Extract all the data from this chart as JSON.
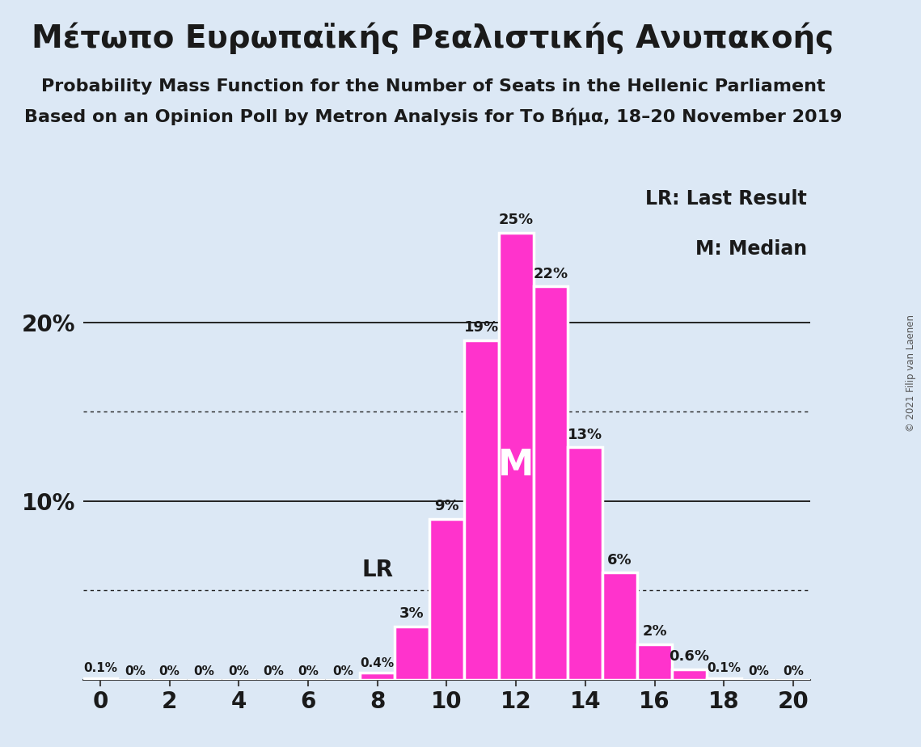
{
  "title_greek": "Μέτωπο Ευρωπαϊκής Ρεαλιστικής Ανυπακοής",
  "subtitle1": "Probability Mass Function for the Number of Seats in the Hellenic Parliament",
  "subtitle2": "Based on an Opinion Poll by Metron Analysis for Το Βήμα, 18–20 November 2019",
  "copyright": "© 2021 Filip van Laenen",
  "background_color": "#dce8f5",
  "bar_color": "#ff33cc",
  "bar_edge_color": "#ffffff",
  "seats": [
    0,
    1,
    2,
    3,
    4,
    5,
    6,
    7,
    8,
    9,
    10,
    11,
    12,
    13,
    14,
    15,
    16,
    17,
    18,
    19,
    20
  ],
  "probabilities": [
    0.1,
    0,
    0,
    0,
    0,
    0,
    0,
    0,
    0.4,
    3,
    9,
    19,
    25,
    22,
    13,
    6,
    2,
    0.6,
    0.1,
    0,
    0
  ],
  "labels": [
    "0.1%",
    "0%",
    "0%",
    "0%",
    "0%",
    "0%",
    "0%",
    "0%",
    "0.4%",
    "3%",
    "9%",
    "19%",
    "25%",
    "22%",
    "13%",
    "6%",
    "2%",
    "0.6%",
    "0.1%",
    "0%",
    "0%"
  ],
  "show_label": [
    true,
    true,
    true,
    true,
    true,
    true,
    true,
    true,
    true,
    true,
    true,
    true,
    true,
    true,
    true,
    true,
    true,
    true,
    true,
    true,
    true
  ],
  "xlim": [
    -0.5,
    20.5
  ],
  "ylim": [
    0,
    28
  ],
  "solid_gridlines": [
    10,
    20
  ],
  "dotted_gridlines": [
    5,
    15
  ],
  "lr_seat": 9,
  "lr_label": "LR",
  "median_seat": 12,
  "median_label": "M",
  "legend_lr": "LR: Last Result",
  "legend_m": "M: Median",
  "title_fontsize": 28,
  "subtitle_fontsize": 16,
  "axis_fontsize": 20,
  "legend_fontsize": 17
}
